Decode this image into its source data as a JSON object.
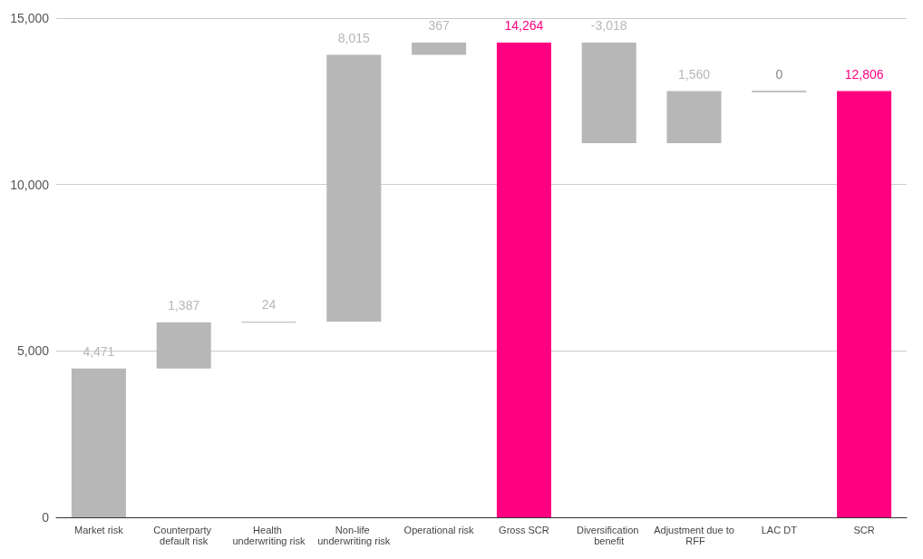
{
  "chart_data": {
    "type": "bar",
    "categories": [
      "Market risk",
      "Counterparty default risk",
      "Health underwriting risk",
      "Non-life underwriting risk",
      "Operational risk",
      "Gross SCR",
      "Diversification benefit",
      "Adjustment due to RFF",
      "LAC DT",
      "SCR"
    ],
    "values": [
      4471,
      1387,
      24,
      8015,
      367,
      14264,
      -3018,
      1560,
      0,
      12806
    ],
    "base": [
      0,
      4471,
      5858,
      5882,
      13897,
      0,
      14264,
      11246,
      12806,
      0
    ],
    "colors": [
      "#b7b7b7",
      "#b7b7b7",
      "#b7b7b7",
      "#b7b7b7",
      "#b7b7b7",
      "#ff0080",
      "#b7b7b7",
      "#b7b7b7",
      "#888888",
      "#ff0080"
    ],
    "value_labels": [
      "4,471",
      "1,387",
      "24",
      "8,015",
      "367",
      "14,264",
      "-3,018",
      "1,560",
      "0",
      "12,806"
    ],
    "ylim": [
      0,
      15000
    ],
    "yticks": [
      {
        "value": 0,
        "label": "0"
      },
      {
        "value": 5000,
        "label": "5,000"
      },
      {
        "value": 10000,
        "label": "10,000"
      },
      {
        "value": 15000,
        "label": "15,000"
      }
    ],
    "grid": "y"
  }
}
